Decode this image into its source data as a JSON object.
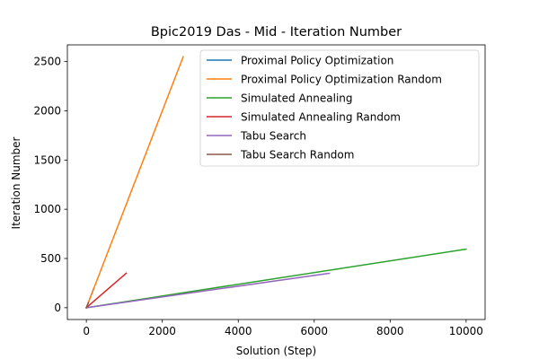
{
  "chart_data": {
    "type": "line",
    "title": "Bpic2019 Das - Mid - Iteration Number",
    "xlabel": "Solution (Step)",
    "ylabel": "Iteration Number",
    "xlim": [
      -500,
      10500
    ],
    "ylim": [
      -120,
      2670
    ],
    "xticks": [
      0,
      2000,
      4000,
      6000,
      8000,
      10000
    ],
    "yticks": [
      0,
      500,
      1000,
      1500,
      2000,
      2500
    ],
    "grid": false,
    "legend_position": "top-right",
    "series": [
      {
        "name": "Proximal Policy Optimization",
        "color": "#1f77b4",
        "x": [
          0,
          200
        ],
        "y": [
          0,
          200
        ]
      },
      {
        "name": "Proximal Policy Optimization Random",
        "color": "#ff7f0e",
        "x": [
          0,
          2550
        ],
        "y": [
          0,
          2550
        ]
      },
      {
        "name": "Simulated Annealing",
        "color": "#2ca02c",
        "x": [
          0,
          10000
        ],
        "y": [
          0,
          595
        ]
      },
      {
        "name": "Simulated Annealing Random",
        "color": "#d62728",
        "x": [
          0,
          1050
        ],
        "y": [
          0,
          350
        ]
      },
      {
        "name": "Tabu Search",
        "color": "#9467bd",
        "x": [
          0,
          6400
        ],
        "y": [
          0,
          350
        ]
      },
      {
        "name": "Tabu Search Random",
        "color": "#8c564b",
        "x": [
          0,
          50
        ],
        "y": [
          0,
          50
        ]
      }
    ]
  }
}
